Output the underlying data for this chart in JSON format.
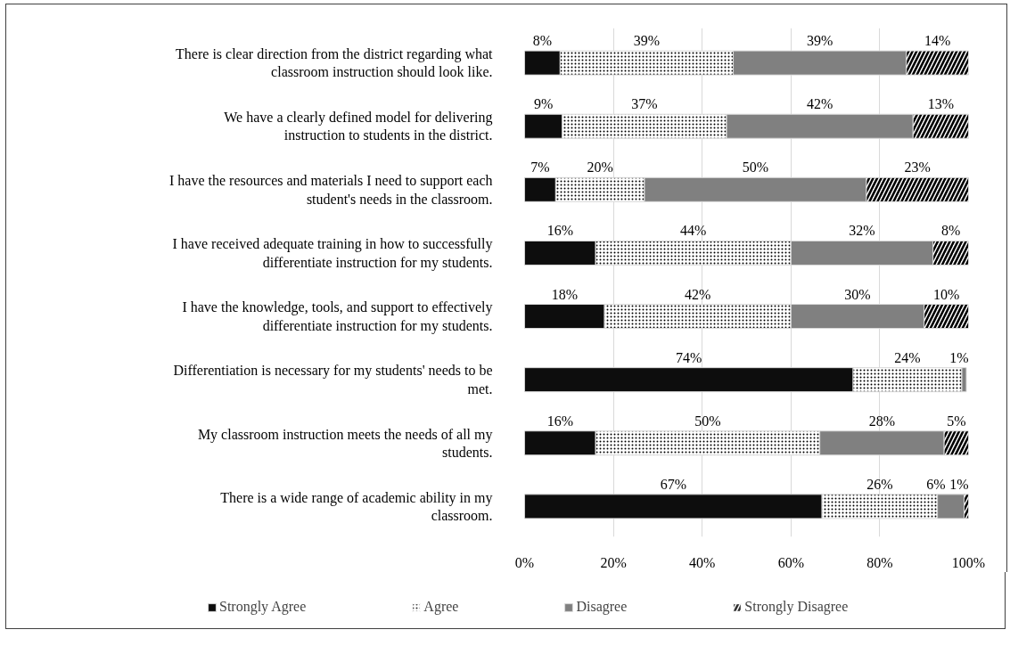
{
  "chart_data": {
    "type": "bar",
    "orientation": "horizontal",
    "stacked": true,
    "categories": [
      "There is clear direction from the district regarding what classroom instruction should look like.",
      "We have a clearly defined model for delivering instruction to students in the district.",
      "I have the resources and materials I need to support each student's needs in the classroom.",
      "I have received adequate training in how to successfully differentiate instruction for my students.",
      "I have the knowledge, tools, and support to effectively differentiate instruction for my students.",
      "Differentiation is necessary for my students' needs to be met.",
      "My classroom instruction meets the needs of all my students.",
      "There is a wide range of academic ability in my classroom."
    ],
    "series": [
      {
        "name": "Strongly Agree",
        "color": "#0d0d0d",
        "values": [
          8,
          8.5,
          7,
          16,
          18,
          74,
          16,
          67
        ],
        "value_labels": [
          "8%",
          "9%",
          "7%",
          "16%",
          "18%",
          "74%",
          "16%",
          "67%"
        ]
      },
      {
        "name": "Agree",
        "color": "#ffffff",
        "values": [
          39,
          37,
          20,
          44,
          42,
          24.5,
          50.5,
          26
        ],
        "value_labels": [
          "39%",
          "37%",
          "20%",
          "44%",
          "42%",
          "24%",
          "50%",
          "26%"
        ]
      },
      {
        "name": "Disagree",
        "color": "#808080",
        "values": [
          39,
          42,
          50,
          32,
          30,
          1,
          28,
          6
        ],
        "value_labels": [
          "39%",
          "42%",
          "50%",
          "32%",
          "30%",
          "1%",
          "28%",
          "6%"
        ]
      },
      {
        "name": "Strongly Disagree",
        "color": "#ffffff",
        "values": [
          14,
          12.5,
          23,
          8,
          10,
          null,
          5.5,
          1
        ],
        "value_labels": [
          "14%",
          "13%",
          "23%",
          "8%",
          "10%",
          null,
          "5%",
          "1%"
        ]
      }
    ],
    "xlim": [
      0,
      100
    ],
    "xticks": [
      {
        "value": 0,
        "label": "0%"
      },
      {
        "value": 20,
        "label": "20%"
      },
      {
        "value": 40,
        "label": "40%"
      },
      {
        "value": 60,
        "label": "60%"
      },
      {
        "value": 80,
        "label": "80%"
      },
      {
        "value": 100,
        "label": "100%"
      }
    ],
    "grid": "x",
    "legend": "bottom"
  }
}
